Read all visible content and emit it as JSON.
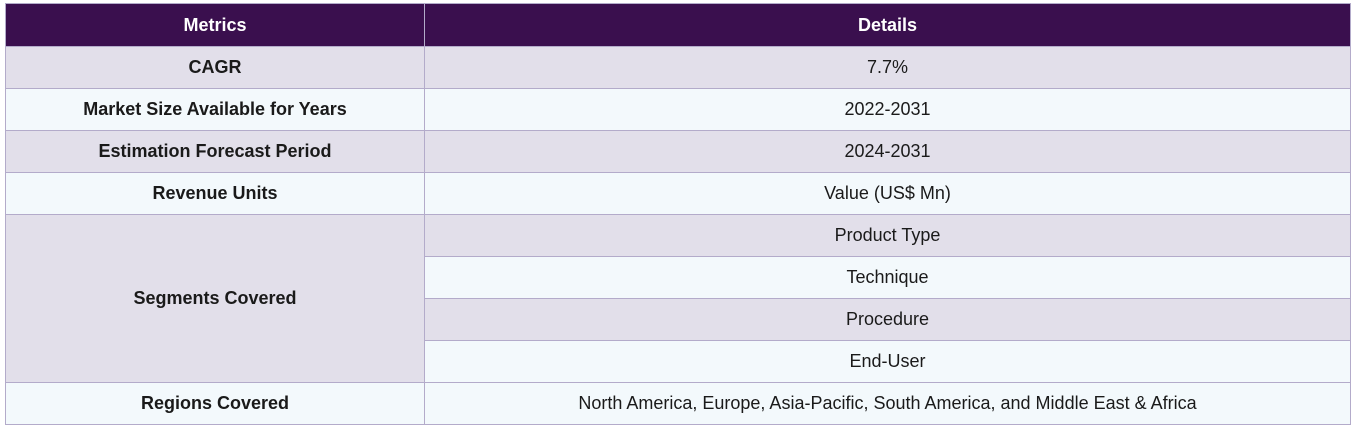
{
  "table": {
    "header": [
      "Metrics",
      "Details"
    ],
    "rows": [
      {
        "metric": "CAGR",
        "details": [
          "7.7%"
        ]
      },
      {
        "metric": "Market Size Available for Years",
        "details": [
          "2022-2031"
        ]
      },
      {
        "metric": "Estimation Forecast Period",
        "details": [
          "2024-2031"
        ]
      },
      {
        "metric": "Revenue Units",
        "details": [
          "Value (US$ Mn)"
        ]
      },
      {
        "metric": "Segments Covered",
        "details": [
          "Product Type",
          "Technique",
          "Procedure",
          "End-User"
        ]
      },
      {
        "metric": "Regions Covered",
        "details": [
          "North America, Europe, Asia-Pacific, South America, and Middle East & Africa"
        ]
      }
    ]
  }
}
